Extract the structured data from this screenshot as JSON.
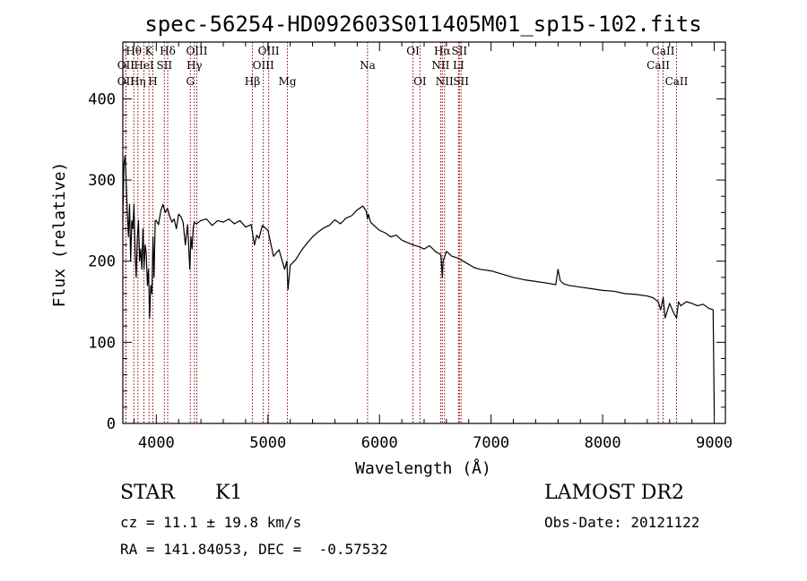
{
  "chart_data": {
    "type": "line",
    "title": "spec-56254-HD092603S011405M01_sp15-102.fits",
    "xlabel": "Wavelength (Å)",
    "ylabel": "Flux (relative)",
    "xlim": [
      3700,
      9100
    ],
    "ylim": [
      0,
      470
    ],
    "x_ticks": [
      4000,
      5000,
      6000,
      7000,
      8000,
      9000
    ],
    "y_ticks": [
      0,
      100,
      200,
      300,
      400
    ],
    "grid": false,
    "series": [
      {
        "x": [
          3700,
          3710,
          3720,
          3730,
          3740,
          3750,
          3760,
          3770,
          3780,
          3790,
          3800,
          3810,
          3820,
          3830,
          3840,
          3850,
          3860,
          3870,
          3880,
          3890,
          3900,
          3910,
          3920,
          3930,
          3940,
          3950,
          3960,
          3970,
          3980,
          3990,
          4000,
          4020,
          4040,
          4060,
          4080,
          4100,
          4120,
          4140,
          4160,
          4180,
          4200,
          4220,
          4240,
          4260,
          4280,
          4300,
          4310,
          4320,
          4330,
          4340,
          4360,
          4380,
          4400,
          4450,
          4500,
          4550,
          4600,
          4650,
          4700,
          4750,
          4800,
          4850,
          4880,
          4900,
          4920,
          4950,
          5000,
          5050,
          5100,
          5150,
          5170,
          5180,
          5200,
          5250,
          5300,
          5350,
          5400,
          5450,
          5500,
          5550,
          5600,
          5650,
          5700,
          5750,
          5800,
          5850,
          5880,
          5893,
          5900,
          5920,
          5950,
          6000,
          6050,
          6100,
          6150,
          6200,
          6250,
          6300,
          6350,
          6400,
          6450,
          6500,
          6550,
          6563,
          6570,
          6600,
          6650,
          6700,
          6750,
          6800,
          6850,
          6900,
          6950,
          7000,
          7100,
          7200,
          7300,
          7400,
          7500,
          7580,
          7600,
          7620,
          7650,
          7700,
          7800,
          7900,
          8000,
          8100,
          8200,
          8300,
          8400,
          8450,
          8498,
          8520,
          8542,
          8560,
          8600,
          8640,
          8662,
          8680,
          8700,
          8750,
          8800,
          8850,
          8900,
          8950,
          8990,
          9000
        ],
        "y": [
          250,
          320,
          330,
          300,
          260,
          230,
          270,
          200,
          250,
          240,
          270,
          210,
          180,
          230,
          250,
          200,
          215,
          190,
          240,
          190,
          220,
          210,
          170,
          190,
          130,
          170,
          160,
          230,
          180,
          250,
          250,
          245,
          262,
          270,
          260,
          265,
          255,
          248,
          252,
          240,
          258,
          255,
          248,
          220,
          245,
          190,
          230,
          215,
          240,
          248,
          246,
          248,
          250,
          252,
          244,
          250,
          248,
          252,
          246,
          250,
          242,
          245,
          220,
          232,
          228,
          244,
          238,
          206,
          214,
          190,
          200,
          165,
          195,
          202,
          213,
          222,
          230,
          236,
          241,
          244,
          251,
          246,
          253,
          256,
          263,
          268,
          262,
          252,
          258,
          248,
          244,
          238,
          235,
          230,
          232,
          226,
          223,
          220,
          218,
          215,
          219,
          212,
          208,
          180,
          200,
          212,
          206,
          204,
          200,
          196,
          192,
          190,
          189,
          188,
          184,
          180,
          177,
          175,
          173,
          171,
          190,
          176,
          172,
          170,
          168,
          166,
          164,
          163,
          160,
          159,
          157,
          155,
          150,
          140,
          155,
          130,
          148,
          135,
          130,
          150,
          145,
          150,
          148,
          145,
          147,
          142,
          140,
          10
        ]
      }
    ],
    "line_labels": [
      {
        "name": "Hθ",
        "wave": 3798,
        "row": 0
      },
      {
        "name": "OII",
        "wave": 3727,
        "row": 1
      },
      {
        "name": "OII",
        "wave": 3727,
        "row": 2
      },
      {
        "name": "HeI",
        "wave": 3889,
        "row": 1
      },
      {
        "name": "Hη",
        "wave": 3835,
        "row": 2
      },
      {
        "name": "K",
        "wave": 3934,
        "row": 0
      },
      {
        "name": "H",
        "wave": 3969,
        "row": 2
      },
      {
        "name": "SII",
        "wave": 4072,
        "row": 1
      },
      {
        "name": "Hδ",
        "wave": 4102,
        "row": 0
      },
      {
        "name": "OIII",
        "wave": 4363,
        "row": 0
      },
      {
        "name": "Hγ",
        "wave": 4341,
        "row": 1
      },
      {
        "name": "G",
        "wave": 4305,
        "row": 2
      },
      {
        "name": "Hβ",
        "wave": 4861,
        "row": 2
      },
      {
        "name": "OIII",
        "wave": 4959,
        "row": 1
      },
      {
        "name": "OIII",
        "wave": 5007,
        "row": 0
      },
      {
        "name": "Mg",
        "wave": 5175,
        "row": 2
      },
      {
        "name": "Na",
        "wave": 5893,
        "row": 1
      },
      {
        "name": "OI",
        "wave": 6300,
        "row": 0
      },
      {
        "name": "OI",
        "wave": 6363,
        "row": 2
      },
      {
        "name": "Hα",
        "wave": 6563,
        "row": 0
      },
      {
        "name": "NII",
        "wave": 6548,
        "row": 1
      },
      {
        "name": "NII",
        "wave": 6583,
        "row": 2
      },
      {
        "name": "SII",
        "wave": 6716,
        "row": 0
      },
      {
        "name": "LI",
        "wave": 6708,
        "row": 1
      },
      {
        "name": "SII",
        "wave": 6731,
        "row": 2
      },
      {
        "name": "CaII",
        "wave": 8498,
        "row": 1
      },
      {
        "name": "CaII",
        "wave": 8542,
        "row": 0
      },
      {
        "name": "CaII",
        "wave": 8662,
        "row": 2
      }
    ]
  },
  "info": {
    "class_label": "STAR",
    "subclass": "K1",
    "redshift": "cz = 11.1 ± 19.8 km/s",
    "coords": "RA = 141.84053, DEC =  -0.57532",
    "survey": "LAMOST DR2",
    "obs_date": "Obs-Date: 20121122"
  },
  "colors": {
    "line_marker": "#8b0000",
    "spectrum": "#000000"
  }
}
